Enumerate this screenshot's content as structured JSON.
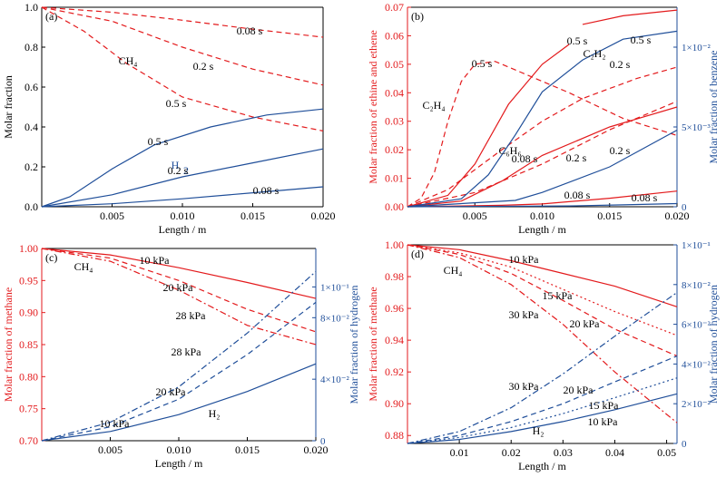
{
  "colors": {
    "red": "#e31a1c",
    "blue": "#1f4e99",
    "black": "#000000"
  },
  "chart_data": [
    {
      "panel": "(a)",
      "type": "line",
      "xlabel": "Length / m",
      "ylabel": "Molar fraction",
      "xlim": [
        0,
        0.02
      ],
      "ylim": [
        0,
        1.0
      ],
      "xticks": [
        "0.005",
        "0.010",
        "0.015",
        "0.020"
      ],
      "yticks": [
        "0.0",
        "0.2",
        "0.4",
        "0.6",
        "0.8",
        "1.0"
      ],
      "labels": [
        "CH₄",
        "H",
        "2",
        "0.08 s",
        "0.2 s",
        "0.5 s",
        "0.5 s",
        "0.2 s",
        "0.08 s"
      ],
      "series": [
        {
          "name": "CH4 0.08 s",
          "color": "red",
          "dash": "dash",
          "x": [
            0,
            0.005,
            0.01,
            0.015,
            0.02
          ],
          "y": [
            1.0,
            0.975,
            0.935,
            0.89,
            0.85
          ]
        },
        {
          "name": "CH4 0.2 s",
          "color": "red",
          "dash": "dash",
          "x": [
            0,
            0.005,
            0.01,
            0.015,
            0.02
          ],
          "y": [
            1.0,
            0.93,
            0.8,
            0.69,
            0.61
          ]
        },
        {
          "name": "CH4 0.5 s",
          "color": "red",
          "dash": "dash",
          "x": [
            0,
            0.003,
            0.006,
            0.01,
            0.015,
            0.02
          ],
          "y": [
            1.0,
            0.88,
            0.72,
            0.55,
            0.45,
            0.38
          ]
        },
        {
          "name": "H2 0.5 s",
          "color": "blue",
          "dash": "solid",
          "x": [
            0,
            0.002,
            0.005,
            0.008,
            0.012,
            0.016,
            0.02
          ],
          "y": [
            0,
            0.05,
            0.19,
            0.31,
            0.4,
            0.46,
            0.49
          ]
        },
        {
          "name": "H2 0.2 s",
          "color": "blue",
          "dash": "solid",
          "x": [
            0,
            0.005,
            0.01,
            0.015,
            0.02
          ],
          "y": [
            0,
            0.06,
            0.15,
            0.22,
            0.29
          ]
        },
        {
          "name": "H2 0.08 s",
          "color": "blue",
          "dash": "solid",
          "x": [
            0,
            0.005,
            0.01,
            0.015,
            0.02
          ],
          "y": [
            0,
            0.015,
            0.04,
            0.07,
            0.1
          ]
        }
      ]
    },
    {
      "panel": "(b)",
      "type": "line",
      "xlabel": "Length / m",
      "ylabel": "Molar fraction of ethine and ethene",
      "y2label": "Molar fraction of benzene",
      "xlim": [
        0,
        0.02
      ],
      "ylim": [
        0,
        0.07
      ],
      "y2lim": [
        0,
        0.0125
      ],
      "xticks": [
        "0.005",
        "0.010",
        "0.015",
        "0.020"
      ],
      "yticks": [
        "0.00",
        "0.01",
        "0.02",
        "0.03",
        "0.04",
        "0.05",
        "0.06",
        "0.07"
      ],
      "y2ticks": [
        "0",
        "5×10⁻³",
        "1×10⁻²"
      ],
      "labels": [
        "C₂H₄",
        "C₂H₂",
        "C₆H₆",
        "0.5 s",
        "0.5 s",
        "0.5 s",
        "0.2 s",
        "0.2 s",
        "0.2 s",
        "0.08 s",
        "0.08 s",
        "0.08 s"
      ],
      "series": [
        {
          "name": "C2H4 0.5 s",
          "color": "red",
          "dash": "dash",
          "axis": "left",
          "x": [
            0,
            0.001,
            0.002,
            0.003,
            0.004,
            0.005,
            0.0065,
            0.008,
            0.012,
            0.016,
            0.02
          ],
          "y": [
            0,
            0.003,
            0.012,
            0.03,
            0.044,
            0.05,
            0.051,
            0.048,
            0.04,
            0.031,
            0.025
          ]
        },
        {
          "name": "C2H2 0.5 s",
          "color": "red",
          "dash": "solid",
          "axis": "left",
          "x": [
            0,
            0.003,
            0.005,
            0.0075,
            0.01,
            0.012
          ],
          "y": [
            0,
            0.004,
            0.015,
            0.036,
            0.05,
            0.057
          ]
        },
        {
          "name": "C2H2 0.2 s",
          "color": "red",
          "dash": "solid",
          "axis": "left",
          "x": [
            0,
            0.004,
            0.007,
            0.01,
            0.015,
            0.02
          ],
          "y": [
            0,
            0.002,
            0.009,
            0.018,
            0.028,
            0.035
          ]
        },
        {
          "name": "C2H2 0.08 s",
          "color": "red",
          "dash": "solid",
          "axis": "left",
          "x": [
            0,
            0.007,
            0.01,
            0.015,
            0.02
          ],
          "y": [
            0,
            0.0005,
            0.001,
            0.003,
            0.0055
          ]
        },
        {
          "name": "C2H2 upper",
          "color": "red",
          "dash": "solid",
          "axis": "left",
          "x": [
            0.013,
            0.016,
            0.02
          ],
          "y": [
            0.064,
            0.067,
            0.069
          ]
        },
        {
          "name": "C2H4 0.2 s",
          "color": "red",
          "dash": "dash",
          "axis": "left",
          "x": [
            0,
            0.003,
            0.007,
            0.01,
            0.013,
            0.017,
            0.02
          ],
          "y": [
            0,
            0.006,
            0.02,
            0.03,
            0.038,
            0.045,
            0.049
          ]
        },
        {
          "name": "C2H4 0.08 s",
          "color": "red",
          "dash": "dash",
          "axis": "left",
          "x": [
            0,
            0.005,
            0.01,
            0.015,
            0.02
          ],
          "y": [
            0,
            0.005,
            0.015,
            0.027,
            0.037
          ]
        },
        {
          "name": "C6H6 0.5 s",
          "color": "blue",
          "dash": "solid",
          "axis": "right",
          "x": [
            0,
            0.004,
            0.006,
            0.008,
            0.01,
            0.013,
            0.016,
            0.02
          ],
          "y": [
            0,
            0.0005,
            0.002,
            0.0045,
            0.0072,
            0.0092,
            0.0105,
            0.011
          ]
        },
        {
          "name": "C6H6 0.2 s",
          "color": "blue",
          "dash": "solid",
          "axis": "right",
          "x": [
            0,
            0.008,
            0.01,
            0.015,
            0.02
          ],
          "y": [
            0,
            0.0004,
            0.0009,
            0.0025,
            0.0048
          ]
        },
        {
          "name": "C6H6 0.08 s",
          "color": "blue",
          "dash": "solid",
          "axis": "right",
          "x": [
            0,
            0.012,
            0.016,
            0.02
          ],
          "y": [
            0,
            5e-05,
            0.00012,
            0.0002
          ]
        }
      ]
    },
    {
      "panel": "(c)",
      "type": "line",
      "xlabel": "Length / m",
      "ylabel": "Molar fraction of methane",
      "y2label": "Molar fraction of hydrogen",
      "xlim": [
        0,
        0.02
      ],
      "ylim": [
        0.7,
        1.0
      ],
      "y2lim": [
        0,
        0.125
      ],
      "xticks": [
        "0.005",
        "0.010",
        "0.015",
        "0.020"
      ],
      "yticks": [
        "0.70",
        "0.75",
        "0.80",
        "0.85",
        "0.90",
        "0.95",
        "1.00"
      ],
      "y2ticks": [
        "0",
        "4×10⁻²",
        "8×10⁻²",
        "1×10⁻¹"
      ],
      "labels": [
        "CH₄",
        "H₂",
        "10 kPa",
        "20 kPa",
        "28 kPa",
        "28 kPa",
        "20 kPa",
        "10 kPa"
      ],
      "series": [
        {
          "name": "CH4 10 kPa",
          "color": "red",
          "dash": "solid",
          "axis": "left",
          "x": [
            0,
            0.005,
            0.01,
            0.015,
            0.02
          ],
          "y": [
            1.0,
            0.99,
            0.97,
            0.947,
            0.922
          ]
        },
        {
          "name": "CH4 20 kPa",
          "color": "red",
          "dash": "dash",
          "axis": "left",
          "x": [
            0,
            0.005,
            0.01,
            0.015,
            0.02
          ],
          "y": [
            1.0,
            0.985,
            0.95,
            0.905,
            0.87
          ]
        },
        {
          "name": "CH4 28 kPa",
          "color": "red",
          "dash": "dashdot",
          "axis": "left",
          "x": [
            0,
            0.005,
            0.01,
            0.015,
            0.02
          ],
          "y": [
            1.0,
            0.98,
            0.935,
            0.88,
            0.85
          ]
        },
        {
          "name": "H2 28 kPa",
          "color": "blue",
          "dash": "dashdot",
          "axis": "right",
          "x": [
            0,
            0.005,
            0.01,
            0.015,
            0.02
          ],
          "y": [
            0,
            0.012,
            0.035,
            0.07,
            0.11
          ]
        },
        {
          "name": "H2 20 kPa",
          "color": "blue",
          "dash": "dash",
          "axis": "right",
          "x": [
            0,
            0.005,
            0.01,
            0.015,
            0.02
          ],
          "y": [
            0,
            0.009,
            0.027,
            0.056,
            0.09
          ]
        },
        {
          "name": "H2 10 kPa",
          "color": "blue",
          "dash": "solid",
          "axis": "right",
          "x": [
            0,
            0.005,
            0.01,
            0.015,
            0.02
          ],
          "y": [
            0,
            0.006,
            0.017,
            0.032,
            0.05
          ]
        }
      ]
    },
    {
      "panel": "(d)",
      "type": "line",
      "xlabel": "Length / m",
      "ylabel": "Molar fraction of methane",
      "y2label": "Molar fraction of hydrogen",
      "xlim": [
        0,
        0.052
      ],
      "ylim": [
        0.875,
        1.0
      ],
      "y2lim": [
        0,
        0.1
      ],
      "xticks": [
        "0.01",
        "0.02",
        "0.03",
        "0.04",
        "0.05"
      ],
      "yticks": [
        "0.88",
        "0.90",
        "0.92",
        "0.94",
        "0.96",
        "0.98",
        "1.00"
      ],
      "y2ticks": [
        "0",
        "2×10⁻²",
        "4×10⁻²",
        "6×10⁻²",
        "8×10⁻²",
        "1×10⁻¹"
      ],
      "labels": [
        "CH₄",
        "H₂",
        "10 kPa",
        "15 kPa",
        "20 kPa",
        "30 kPa",
        "30 kPa",
        "20 kPa",
        "15 kPa",
        "10 kPa"
      ],
      "series": [
        {
          "name": "CH4 10 kPa",
          "color": "red",
          "dash": "solid",
          "axis": "left",
          "x": [
            0,
            0.01,
            0.02,
            0.03,
            0.04,
            0.052
          ],
          "y": [
            1.0,
            0.997,
            0.99,
            0.982,
            0.974,
            0.961
          ]
        },
        {
          "name": "CH4 15 kPa",
          "color": "red",
          "dash": "dot",
          "axis": "left",
          "x": [
            0,
            0.01,
            0.02,
            0.03,
            0.04,
            0.052
          ],
          "y": [
            1.0,
            0.995,
            0.986,
            0.972,
            0.958,
            0.943
          ]
        },
        {
          "name": "CH4 20 kPa",
          "color": "red",
          "dash": "dash",
          "axis": "left",
          "x": [
            0,
            0.01,
            0.02,
            0.03,
            0.04,
            0.052
          ],
          "y": [
            1.0,
            0.994,
            0.982,
            0.965,
            0.947,
            0.93
          ]
        },
        {
          "name": "CH4 30 kPa",
          "color": "red",
          "dash": "dashdot",
          "axis": "left",
          "x": [
            0,
            0.01,
            0.02,
            0.03,
            0.04,
            0.052
          ],
          "y": [
            1.0,
            0.992,
            0.975,
            0.95,
            0.92,
            0.888
          ]
        },
        {
          "name": "H2 30 kPa",
          "color": "blue",
          "dash": "dashdot",
          "axis": "right",
          "x": [
            0,
            0.01,
            0.02,
            0.03,
            0.04,
            0.052
          ],
          "y": [
            0,
            0.006,
            0.018,
            0.035,
            0.054,
            0.076
          ]
        },
        {
          "name": "H2 20 kPa",
          "color": "blue",
          "dash": "dash",
          "axis": "right",
          "x": [
            0,
            0.01,
            0.02,
            0.03,
            0.04,
            0.052
          ],
          "y": [
            0,
            0.004,
            0.011,
            0.02,
            0.031,
            0.044
          ]
        },
        {
          "name": "H2 15 kPa",
          "color": "blue",
          "dash": "dot",
          "axis": "right",
          "x": [
            0,
            0.01,
            0.02,
            0.03,
            0.04,
            0.052
          ],
          "y": [
            0,
            0.003,
            0.008,
            0.015,
            0.023,
            0.033
          ]
        },
        {
          "name": "H2 10 kPa",
          "color": "blue",
          "dash": "solid",
          "axis": "right",
          "x": [
            0,
            0.01,
            0.02,
            0.03,
            0.04,
            0.052
          ],
          "y": [
            0,
            0.002,
            0.006,
            0.011,
            0.017,
            0.025
          ]
        }
      ]
    }
  ]
}
